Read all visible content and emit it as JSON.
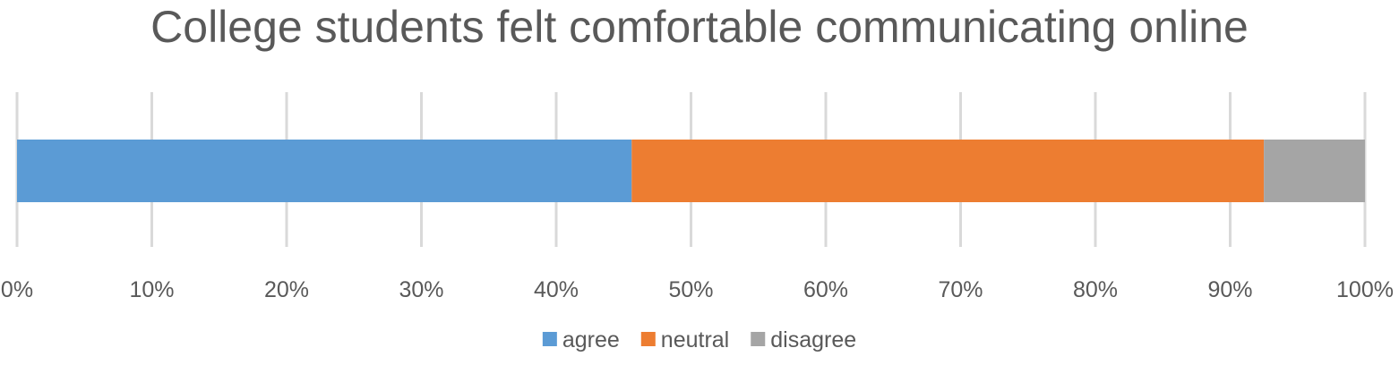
{
  "chart_data": {
    "type": "bar",
    "orientation": "horizontal",
    "stacked": true,
    "percent_stacked": true,
    "title": "College students felt comfortable communicating online",
    "xlabel": "",
    "ylabel": "",
    "categories": [
      ""
    ],
    "series": [
      {
        "name": "agree",
        "values": [
          45.6
        ],
        "color": "#5b9bd5"
      },
      {
        "name": "neutral",
        "values": [
          46.9
        ],
        "color": "#ed7d31"
      },
      {
        "name": "disagree",
        "values": [
          7.5
        ],
        "color": "#a5a5a5"
      }
    ],
    "xlim": [
      0,
      100
    ],
    "xticks": [
      "0%",
      "10%",
      "20%",
      "30%",
      "40%",
      "50%",
      "60%",
      "70%",
      "80%",
      "90%",
      "100%"
    ],
    "grid": true,
    "legend_position": "bottom"
  }
}
